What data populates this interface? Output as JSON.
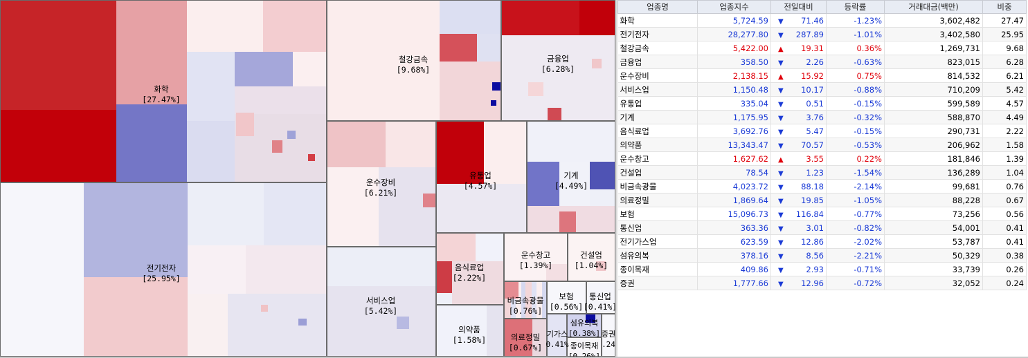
{
  "colors": {
    "up": "#e0000a",
    "down": "#1a3ad6",
    "header_bg": "#e8ecf4"
  },
  "treemap": {
    "sectors": [
      {
        "name": "화학",
        "weight": "[27.47%]"
      },
      {
        "name": "전기전자",
        "weight": "[25.95%]"
      },
      {
        "name": "철강금속",
        "weight": "[9.68%]"
      },
      {
        "name": "금융업",
        "weight": "[6.28%]"
      },
      {
        "name": "운수장비",
        "weight": "[6.21%]"
      },
      {
        "name": "유통업",
        "weight": "[4.57%]"
      },
      {
        "name": "기계",
        "weight": "[4.49%]"
      },
      {
        "name": "서비스업",
        "weight": "[5.42%]"
      },
      {
        "name": "음식료업",
        "weight": "[2.22%]"
      },
      {
        "name": "운수창고",
        "weight": "[1.39%]"
      },
      {
        "name": "건설업",
        "weight": "[1.04%]"
      },
      {
        "name": "의약품",
        "weight": "[1.58%]"
      },
      {
        "name": "비금속광물",
        "weight": "[0.76%]"
      },
      {
        "name": "보험",
        "weight": "[0.56%]"
      },
      {
        "name": "통신업",
        "weight": "[0.41%]"
      },
      {
        "name": "의료정밀",
        "weight": "[0.67%]"
      },
      {
        "name": "기가스",
        "weight": "0.41%"
      },
      {
        "name": "섬유의복",
        "weight": "[0.38%]"
      },
      {
        "name": "종이목재",
        "weight": "[0.26%]"
      },
      {
        "name": "증권",
        "weight": ".24"
      }
    ]
  },
  "table": {
    "headers": [
      "업종명",
      "업종지수",
      "전일대비",
      "등락률",
      "거래대금(백만)",
      "비중"
    ],
    "rows": [
      {
        "name": "화학",
        "index": "5,724.59",
        "dir": "down",
        "arrow": "▼",
        "change": "71.46",
        "rate": "-1.23%",
        "amount": "3,602,482",
        "weight": "27.47"
      },
      {
        "name": "전기전자",
        "index": "28,277.80",
        "dir": "down",
        "arrow": "▼",
        "change": "287.89",
        "rate": "-1.01%",
        "amount": "3,402,580",
        "weight": "25.95"
      },
      {
        "name": "철강금속",
        "index": "5,422.00",
        "dir": "up",
        "arrow": "▲",
        "change": "19.31",
        "rate": "0.36%",
        "amount": "1,269,731",
        "weight": "9.68"
      },
      {
        "name": "금융업",
        "index": "358.50",
        "dir": "down",
        "arrow": "▼",
        "change": "2.26",
        "rate": "-0.63%",
        "amount": "823,015",
        "weight": "6.28"
      },
      {
        "name": "운수장비",
        "index": "2,138.15",
        "dir": "up",
        "arrow": "▲",
        "change": "15.92",
        "rate": "0.75%",
        "amount": "814,532",
        "weight": "6.21"
      },
      {
        "name": "서비스업",
        "index": "1,150.48",
        "dir": "down",
        "arrow": "▼",
        "change": "10.17",
        "rate": "-0.88%",
        "amount": "710,209",
        "weight": "5.42"
      },
      {
        "name": "유통업",
        "index": "335.04",
        "dir": "down",
        "arrow": "▼",
        "change": "0.51",
        "rate": "-0.15%",
        "amount": "599,589",
        "weight": "4.57"
      },
      {
        "name": "기계",
        "index": "1,175.95",
        "dir": "down",
        "arrow": "▼",
        "change": "3.76",
        "rate": "-0.32%",
        "amount": "588,870",
        "weight": "4.49"
      },
      {
        "name": "음식료업",
        "index": "3,692.76",
        "dir": "down",
        "arrow": "▼",
        "change": "5.47",
        "rate": "-0.15%",
        "amount": "290,731",
        "weight": "2.22"
      },
      {
        "name": "의약품",
        "index": "13,343.47",
        "dir": "down",
        "arrow": "▼",
        "change": "70.57",
        "rate": "-0.53%",
        "amount": "206,962",
        "weight": "1.58"
      },
      {
        "name": "운수창고",
        "index": "1,627.62",
        "dir": "up",
        "arrow": "▲",
        "change": "3.55",
        "rate": "0.22%",
        "amount": "181,846",
        "weight": "1.39"
      },
      {
        "name": "건설업",
        "index": "78.54",
        "dir": "down",
        "arrow": "▼",
        "change": "1.23",
        "rate": "-1.54%",
        "amount": "136,289",
        "weight": "1.04"
      },
      {
        "name": "비금속광물",
        "index": "4,023.72",
        "dir": "down",
        "arrow": "▼",
        "change": "88.18",
        "rate": "-2.14%",
        "amount": "99,681",
        "weight": "0.76"
      },
      {
        "name": "의료정밀",
        "index": "1,869.64",
        "dir": "down",
        "arrow": "▼",
        "change": "19.85",
        "rate": "-1.05%",
        "amount": "88,228",
        "weight": "0.67"
      },
      {
        "name": "보험",
        "index": "15,096.73",
        "dir": "down",
        "arrow": "▼",
        "change": "116.84",
        "rate": "-0.77%",
        "amount": "73,256",
        "weight": "0.56"
      },
      {
        "name": "통신업",
        "index": "363.36",
        "dir": "down",
        "arrow": "▼",
        "change": "3.01",
        "rate": "-0.82%",
        "amount": "54,001",
        "weight": "0.41"
      },
      {
        "name": "전기가스업",
        "index": "623.59",
        "dir": "down",
        "arrow": "▼",
        "change": "12.86",
        "rate": "-2.02%",
        "amount": "53,787",
        "weight": "0.41"
      },
      {
        "name": "섬유의복",
        "index": "378.16",
        "dir": "down",
        "arrow": "▼",
        "change": "8.56",
        "rate": "-2.21%",
        "amount": "50,329",
        "weight": "0.38"
      },
      {
        "name": "종이목재",
        "index": "409.86",
        "dir": "down",
        "arrow": "▼",
        "change": "2.93",
        "rate": "-0.71%",
        "amount": "33,739",
        "weight": "0.26"
      },
      {
        "name": "증권",
        "index": "1,777.66",
        "dir": "down",
        "arrow": "▼",
        "change": "12.96",
        "rate": "-0.72%",
        "amount": "32,052",
        "weight": "0.24"
      }
    ]
  }
}
